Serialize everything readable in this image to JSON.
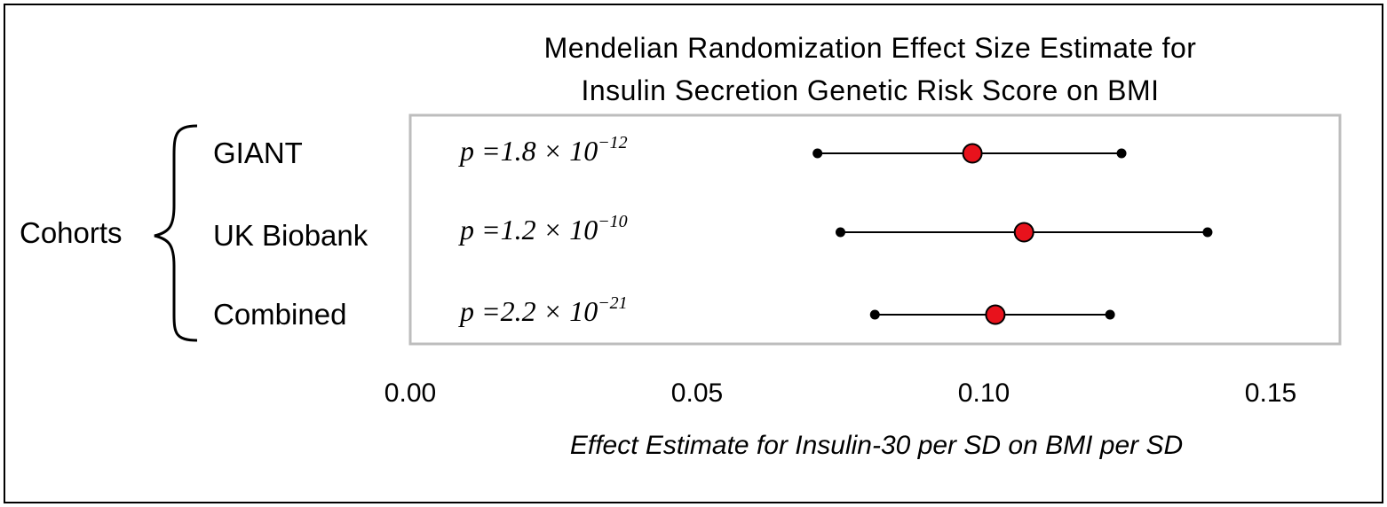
{
  "chart_data": {
    "type": "forest",
    "title_lines": [
      "Mendelian Randomization Effect Size Estimate for",
      "Insulin Secretion Genetic Risk Score on BMI"
    ],
    "group_label": "Cohorts",
    "xlabel": "Effect Estimate for Insulin-30 per SD on BMI per SD",
    "xlim": [
      0.0,
      0.16
    ],
    "ticks": [
      0.0,
      0.05,
      0.1,
      0.15
    ],
    "tick_labels": [
      "0.00",
      "0.05",
      "0.10",
      "0.15"
    ],
    "rows": [
      {
        "label": "GIANT",
        "estimate": 0.098,
        "ci_low": 0.071,
        "ci_high": 0.124,
        "p_base": "p =1.8 × 10",
        "p_exp": "−12"
      },
      {
        "label": "UK Biobank",
        "estimate": 0.107,
        "ci_low": 0.075,
        "ci_high": 0.139,
        "p_base": "p =1.2 × 10",
        "p_exp": "−10"
      },
      {
        "label": "Combined",
        "estimate": 0.102,
        "ci_low": 0.081,
        "ci_high": 0.122,
        "p_base": "p =2.2 × 10",
        "p_exp": "−21"
      }
    ],
    "colors": {
      "point_fill": "#e8121c",
      "line": "#000000",
      "plot_border": "#bdbdbd"
    }
  }
}
